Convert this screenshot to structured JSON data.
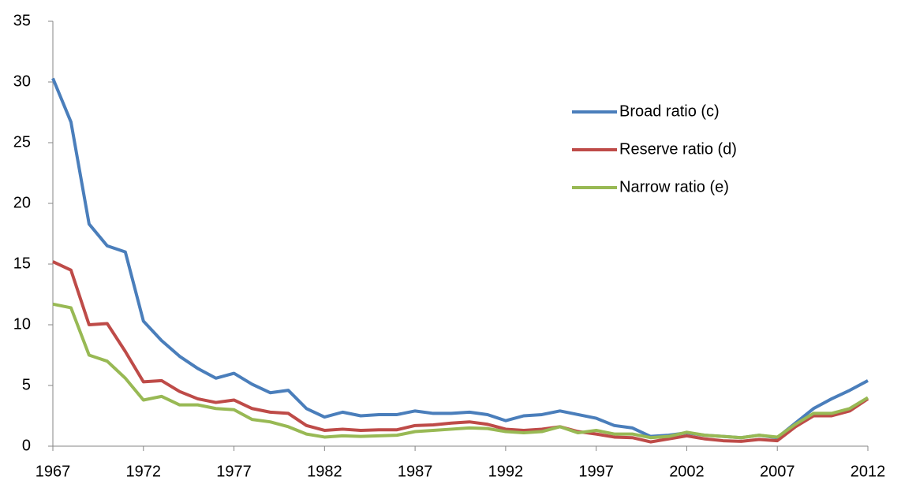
{
  "chart_data": {
    "type": "line",
    "x": [
      1967,
      1968,
      1969,
      1970,
      1971,
      1972,
      1973,
      1974,
      1975,
      1976,
      1977,
      1978,
      1979,
      1980,
      1981,
      1982,
      1983,
      1984,
      1985,
      1986,
      1987,
      1988,
      1989,
      1990,
      1991,
      1992,
      1993,
      1994,
      1995,
      1996,
      1997,
      1998,
      1999,
      2000,
      2001,
      2002,
      2003,
      2004,
      2005,
      2006,
      2007,
      2008,
      2009,
      2010,
      2011,
      2012
    ],
    "series": [
      {
        "name": "Broad ratio (c)",
        "color": "#4a7ebb",
        "values": [
          30.3,
          26.7,
          18.3,
          16.5,
          16.0,
          10.3,
          8.7,
          7.4,
          6.4,
          5.6,
          6.0,
          5.1,
          4.4,
          4.6,
          3.1,
          2.4,
          2.8,
          2.5,
          2.6,
          2.6,
          2.9,
          2.7,
          2.7,
          2.8,
          2.6,
          2.1,
          2.5,
          2.6,
          2.9,
          2.6,
          2.3,
          1.7,
          1.5,
          0.8,
          0.9,
          1.1,
          0.9,
          0.8,
          0.7,
          0.9,
          0.7,
          1.9,
          3.1,
          3.9,
          4.6,
          5.4
        ]
      },
      {
        "name": "Reserve ratio (d)",
        "color": "#be4b48",
        "values": [
          15.2,
          14.5,
          10.0,
          10.1,
          7.8,
          5.3,
          5.4,
          4.5,
          3.9,
          3.6,
          3.8,
          3.1,
          2.8,
          2.7,
          1.7,
          1.3,
          1.4,
          1.3,
          1.35,
          1.35,
          1.7,
          1.75,
          1.9,
          2.0,
          1.8,
          1.4,
          1.3,
          1.4,
          1.6,
          1.2,
          1.0,
          0.75,
          0.7,
          0.35,
          0.6,
          0.85,
          0.6,
          0.45,
          0.4,
          0.55,
          0.45,
          1.6,
          2.5,
          2.5,
          2.9,
          3.9
        ]
      },
      {
        "name": "Narrow ratio (e)",
        "color": "#98b954",
        "values": [
          11.7,
          11.4,
          7.5,
          7.0,
          5.6,
          3.8,
          4.1,
          3.4,
          3.4,
          3.1,
          3.0,
          2.2,
          2.0,
          1.6,
          1.0,
          0.75,
          0.85,
          0.8,
          0.85,
          0.9,
          1.2,
          1.3,
          1.4,
          1.5,
          1.45,
          1.2,
          1.1,
          1.2,
          1.6,
          1.1,
          1.3,
          1.0,
          1.0,
          0.7,
          0.8,
          1.15,
          0.9,
          0.8,
          0.7,
          0.9,
          0.75,
          1.8,
          2.7,
          2.7,
          3.1,
          4.0
        ]
      }
    ],
    "xlim": [
      1967,
      2012
    ],
    "xticks": [
      1967,
      1972,
      1977,
      1982,
      1987,
      1992,
      1997,
      2002,
      2007,
      2012
    ],
    "ylim": [
      0,
      35
    ],
    "yticks": [
      0,
      5,
      10,
      15,
      20,
      25,
      30,
      35
    ],
    "legend": "right"
  }
}
